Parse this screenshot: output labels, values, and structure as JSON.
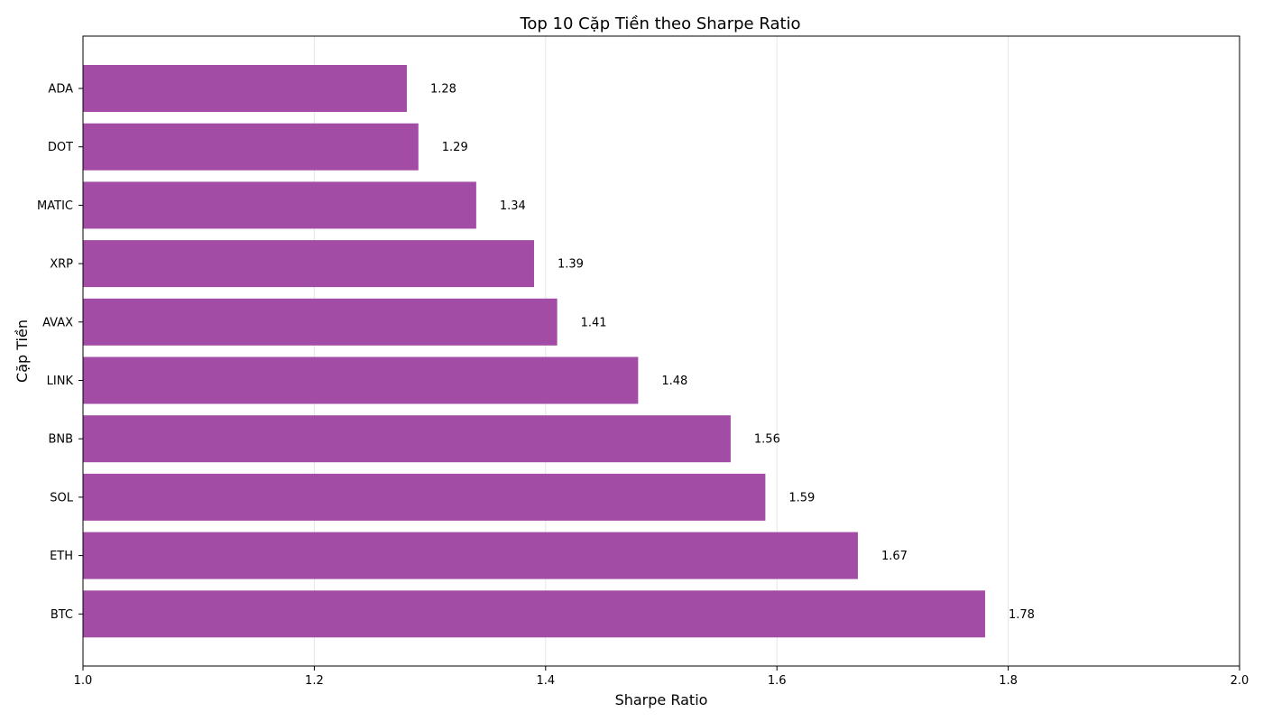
{
  "chart_data": {
    "type": "bar",
    "orientation": "horizontal",
    "title": "Top 10 Cặp Tiền theo Sharpe Ratio",
    "xlabel": "Sharpe Ratio",
    "ylabel": "Cặp Tiền",
    "xlim": [
      1.0,
      2.0
    ],
    "x_ticks": [
      "1.0",
      "1.2",
      "1.4",
      "1.6",
      "1.8",
      "2.0"
    ],
    "x_tick_values": [
      1.0,
      1.2,
      1.4,
      1.6,
      1.8,
      2.0
    ],
    "grid": "x-axis vertical lines",
    "bar_color": "#a24ca5",
    "categories": [
      "ADA",
      "DOT",
      "MATIC",
      "XRP",
      "AVAX",
      "LINK",
      "BNB",
      "SOL",
      "ETH",
      "BTC"
    ],
    "values": [
      1.28,
      1.29,
      1.34,
      1.39,
      1.41,
      1.48,
      1.56,
      1.59,
      1.67,
      1.78
    ],
    "value_labels": [
      "1.28",
      "1.29",
      "1.34",
      "1.39",
      "1.41",
      "1.48",
      "1.56",
      "1.59",
      "1.67",
      "1.78"
    ]
  }
}
